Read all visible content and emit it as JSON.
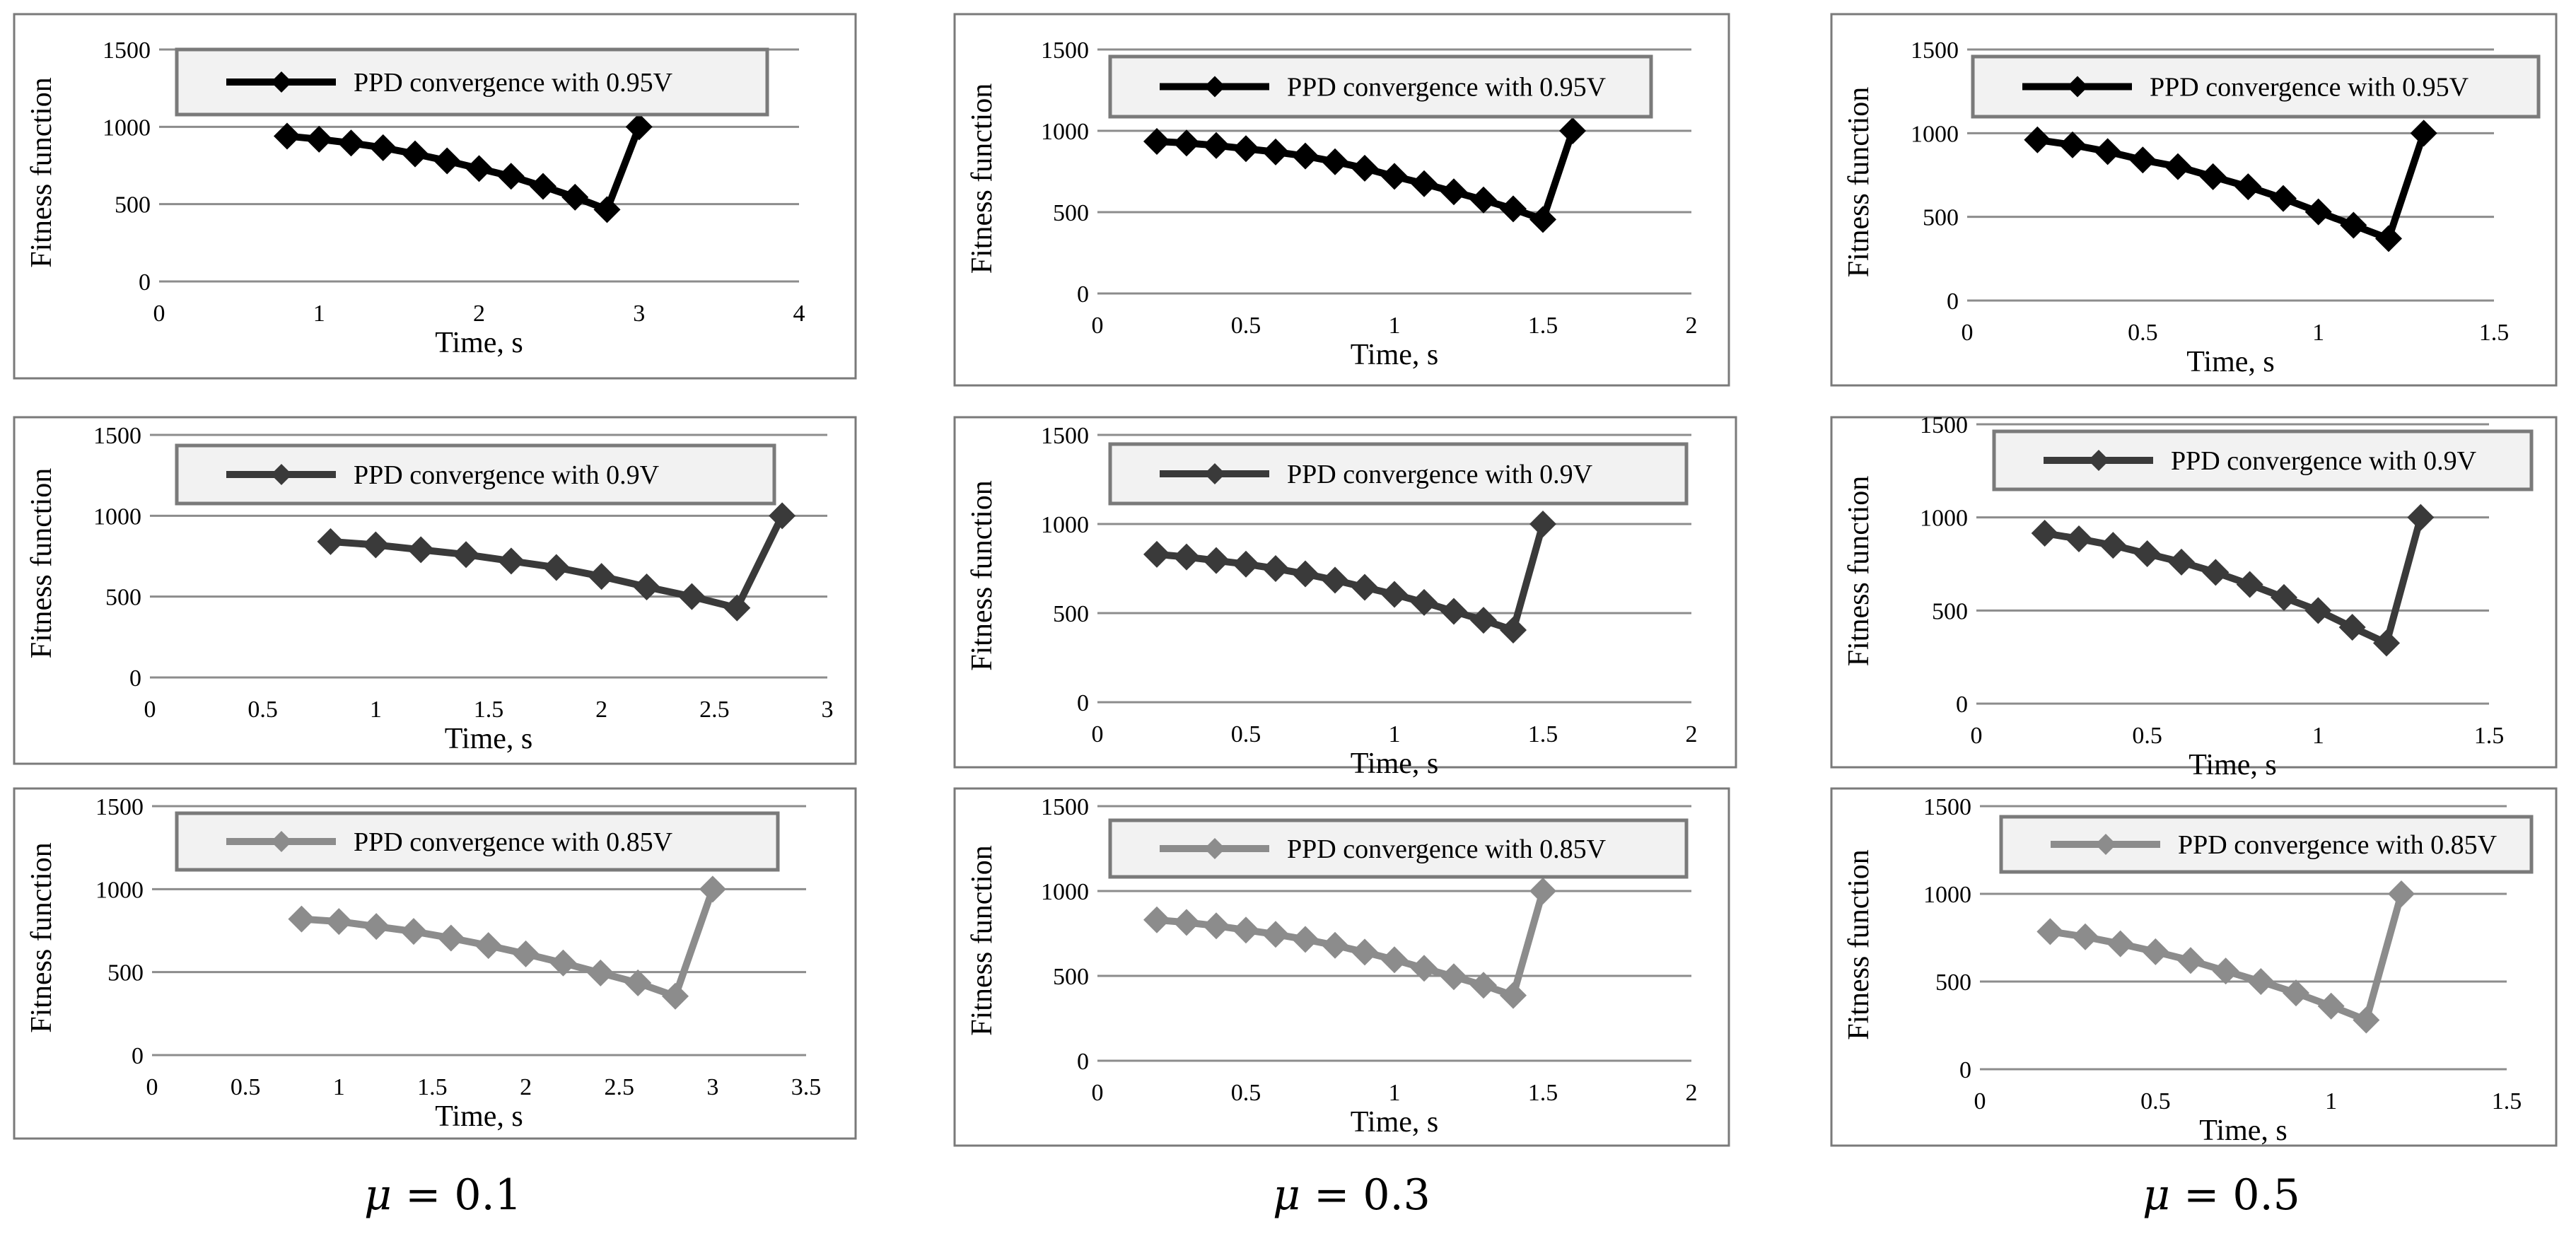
{
  "columns": [
    {
      "label_symbol": "μ",
      "label_rest": " = 0.1"
    },
    {
      "label_symbol": "μ",
      "label_rest": " = 0.3"
    },
    {
      "label_symbol": "μ",
      "label_rest": " = 0.5"
    }
  ],
  "colors": {
    "v095": "#000000",
    "v090": "#3a3a3a",
    "v085": "#8c8c8c",
    "grid": "#8c8c8c",
    "frame": "#7a7a7a",
    "legend_bg": "#f2f2f2"
  },
  "chart_data": [
    {
      "type": "line",
      "legend": "PPD convergence with 0.95V",
      "xlabel": "Time, s",
      "ylabel": "Fitness function",
      "xlim": [
        0,
        4
      ],
      "xticks": [
        "0",
        "1",
        "2",
        "3",
        "4"
      ],
      "ylim": [
        0,
        1500
      ],
      "yticks": [
        "0",
        "500",
        "1000",
        "1500"
      ],
      "x": [
        0.8,
        1.0,
        1.2,
        1.4,
        1.6,
        1.8,
        2.0,
        2.2,
        2.4,
        2.6,
        2.8,
        3.0
      ],
      "y": [
        940,
        920,
        895,
        865,
        825,
        780,
        730,
        680,
        615,
        545,
        465,
        1000
      ],
      "color": "#000000"
    },
    {
      "type": "line",
      "legend": "PPD convergence with 0.95V",
      "xlabel": "Time, s",
      "ylabel": "Fitness function",
      "xlim": [
        0,
        2
      ],
      "xticks": [
        "0",
        "0.5",
        "1",
        "1.5",
        "2"
      ],
      "ylim": [
        0,
        1500
      ],
      "yticks": [
        "0",
        "500",
        "1000",
        "1500"
      ],
      "x": [
        0.2,
        0.3,
        0.4,
        0.5,
        0.6,
        0.7,
        0.8,
        0.9,
        1.0,
        1.1,
        1.2,
        1.3,
        1.4,
        1.5,
        1.6
      ],
      "y": [
        935,
        925,
        910,
        890,
        870,
        845,
        810,
        770,
        720,
        675,
        625,
        575,
        520,
        455,
        1000
      ],
      "color": "#000000"
    },
    {
      "type": "line",
      "legend": "PPD convergence with 0.95V",
      "xlabel": "Time, s",
      "ylabel": "Fitness function",
      "xlim": [
        0,
        1.5
      ],
      "xticks": [
        "0",
        "0.5",
        "1",
        "1.5"
      ],
      "ylim": [
        0,
        1500
      ],
      "yticks": [
        "0",
        "500",
        "1000",
        "1500"
      ],
      "x": [
        0.2,
        0.3,
        0.4,
        0.5,
        0.6,
        0.7,
        0.8,
        0.9,
        1.0,
        1.1,
        1.2,
        1.3
      ],
      "y": [
        960,
        930,
        890,
        840,
        800,
        740,
        680,
        610,
        530,
        450,
        370,
        1000
      ],
      "color": "#000000"
    },
    {
      "type": "line",
      "legend": "PPD convergence with 0.9V",
      "xlabel": "Time, s",
      "ylabel": "Fitness function",
      "xlim": [
        0,
        3
      ],
      "xticks": [
        "0",
        "0.5",
        "1",
        "1.5",
        "2",
        "2.5",
        "3"
      ],
      "ylim": [
        0,
        1500
      ],
      "yticks": [
        "0",
        "500",
        "1000",
        "1500"
      ],
      "x": [
        0.8,
        1.0,
        1.2,
        1.4,
        1.6,
        1.8,
        2.0,
        2.2,
        2.4,
        2.6,
        2.8
      ],
      "y": [
        840,
        820,
        790,
        760,
        720,
        680,
        625,
        560,
        500,
        430,
        1000
      ],
      "color": "#3a3a3a"
    },
    {
      "type": "line",
      "legend": "PPD convergence with 0.9V",
      "xlabel": "Time, s",
      "ylabel": "Fitness function",
      "xlim": [
        0,
        2
      ],
      "xticks": [
        "0",
        "0.5",
        "1",
        "1.5",
        "2"
      ],
      "ylim": [
        0,
        1500
      ],
      "yticks": [
        "0",
        "500",
        "1000",
        "1500"
      ],
      "x": [
        0.2,
        0.3,
        0.4,
        0.5,
        0.6,
        0.7,
        0.8,
        0.9,
        1.0,
        1.1,
        1.2,
        1.3,
        1.4,
        1.5
      ],
      "y": [
        830,
        815,
        795,
        775,
        750,
        720,
        685,
        645,
        605,
        560,
        510,
        460,
        405,
        1000
      ],
      "color": "#3a3a3a"
    },
    {
      "type": "line",
      "legend": "PPD convergence with 0.9V",
      "xlabel": "Time, s",
      "ylabel": "Fitness function",
      "xlim": [
        0,
        1.5
      ],
      "xticks": [
        "0",
        "0.5",
        "1",
        "1.5"
      ],
      "ylim": [
        0,
        1500
      ],
      "yticks": [
        "0",
        "500",
        "1000",
        "1500"
      ],
      "x": [
        0.2,
        0.3,
        0.4,
        0.5,
        0.6,
        0.7,
        0.8,
        0.9,
        1.0,
        1.1,
        1.2,
        1.3
      ],
      "y": [
        915,
        885,
        850,
        805,
        760,
        705,
        640,
        570,
        500,
        410,
        325,
        1000
      ],
      "color": "#3a3a3a"
    },
    {
      "type": "line",
      "legend": "PPD convergence with 0.85V",
      "xlabel": "Time, s",
      "ylabel": "Fitness function",
      "xlim": [
        0,
        3.5
      ],
      "xticks": [
        "0",
        "0.5",
        "1",
        "1.5",
        "2",
        "2.5",
        "3",
        "3.5"
      ],
      "ylim": [
        0,
        1500
      ],
      "yticks": [
        "0",
        "500",
        "1000",
        "1500"
      ],
      "x": [
        0.8,
        1.0,
        1.2,
        1.4,
        1.6,
        1.8,
        2.0,
        2.2,
        2.4,
        2.6,
        2.8,
        3.0
      ],
      "y": [
        820,
        805,
        775,
        745,
        705,
        660,
        610,
        555,
        495,
        435,
        355,
        1000
      ],
      "color": "#8c8c8c"
    },
    {
      "type": "line",
      "legend": "PPD convergence with 0.85V",
      "xlabel": "Time, s",
      "ylabel": "Fitness function",
      "xlim": [
        0,
        2
      ],
      "xticks": [
        "0",
        "0.5",
        "1",
        "1.5",
        "2"
      ],
      "ylim": [
        0,
        1500
      ],
      "yticks": [
        "0",
        "500",
        "1000",
        "1500"
      ],
      "x": [
        0.2,
        0.3,
        0.4,
        0.5,
        0.6,
        0.7,
        0.8,
        0.9,
        1.0,
        1.1,
        1.2,
        1.3,
        1.4,
        1.5
      ],
      "y": [
        830,
        815,
        795,
        770,
        745,
        715,
        680,
        640,
        595,
        545,
        495,
        445,
        385,
        1000
      ],
      "color": "#8c8c8c"
    },
    {
      "type": "line",
      "legend": "PPD convergence with 0.85V",
      "xlabel": "Time, s",
      "ylabel": "Fitness function",
      "xlim": [
        0,
        1.5
      ],
      "xticks": [
        "0",
        "0.5",
        "1",
        "1.5"
      ],
      "ylim": [
        0,
        1500
      ],
      "yticks": [
        "0",
        "500",
        "1000",
        "1500"
      ],
      "x": [
        0.2,
        0.3,
        0.4,
        0.5,
        0.6,
        0.7,
        0.8,
        0.9,
        1.0,
        1.1,
        1.2
      ],
      "y": [
        785,
        755,
        715,
        670,
        620,
        560,
        500,
        435,
        360,
        280,
        1000
      ],
      "color": "#8c8c8c"
    }
  ]
}
